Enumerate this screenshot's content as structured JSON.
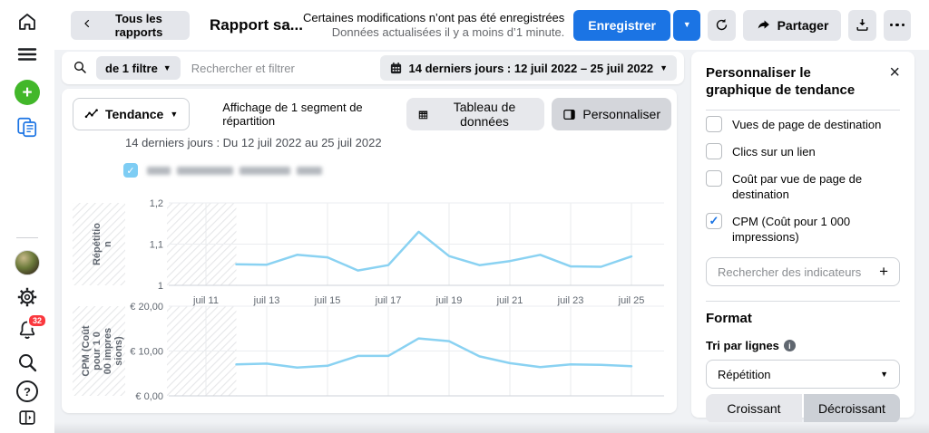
{
  "colors": {
    "accent_blue": "#1b74e4",
    "chart_line": "#8ad2f2",
    "badge_red": "#fa383e",
    "create_green": "#42b72a"
  },
  "sidebar": {
    "icons": [
      "home",
      "menu",
      "create",
      "reports",
      "avatar",
      "settings",
      "notifications",
      "search",
      "help",
      "collapse-panel"
    ],
    "notification_count": "32"
  },
  "topbar": {
    "back_label": "Tous les rapports",
    "title": "Rapport sa...",
    "warning_line1": "Certaines modifications n’ont pas été enregistrées",
    "warning_line2": "Données actualisées il y a moins d’1 minute.",
    "save_label": "Enregistrer",
    "share_label": "Partager"
  },
  "filterbar": {
    "filter_count_label": "de 1 filtre",
    "search_placeholder": "Rechercher et filtrer",
    "date_range_label": "14 derniers jours : 12 juil 2022 – 25 juil 2022"
  },
  "chart_toolbar": {
    "view_type_label": "Tendance",
    "segment_info": "Affichage de 1 segment de répartition",
    "data_table_label": "Tableau de données",
    "customize_label": "Personnaliser"
  },
  "chart_header": {
    "title": "14 derniers jours : Du 12 juil 2022 au 25 juil 2022",
    "legend_checked": true,
    "legend_label_redacted": true
  },
  "chart_data": [
    {
      "type": "line",
      "title": "14 derniers jours : Du 12 juil 2022 au 25 juil 2022",
      "metric": "Répétition",
      "ylabel": "Répétition",
      "ylabel_lines": [
        "Répétitio",
        "n"
      ],
      "ylim": [
        1,
        1.2
      ],
      "yticks": [
        {
          "value": 1,
          "label": "1"
        },
        {
          "value": 1.1,
          "label": "1,1"
        },
        {
          "value": 1.2,
          "label": "1,2"
        }
      ],
      "x_days": [
        12,
        13,
        14,
        15,
        16,
        17,
        18,
        19,
        20,
        21,
        22,
        23,
        24,
        25
      ],
      "values": [
        1.051,
        1.05,
        1.074,
        1.068,
        1.036,
        1.049,
        1.13,
        1.071,
        1.049,
        1.059,
        1.074,
        1.046,
        1.045,
        1.07
      ],
      "xticks": [
        {
          "day": 11,
          "label": "juil 11"
        },
        {
          "day": 13,
          "label": "juil 13"
        },
        {
          "day": 15,
          "label": "juil 15"
        },
        {
          "day": 17,
          "label": "juil 17"
        },
        {
          "day": 19,
          "label": "juil 19"
        },
        {
          "day": 21,
          "label": "juil 21"
        },
        {
          "day": 23,
          "label": "juil 23"
        },
        {
          "day": 25,
          "label": "juil 25"
        }
      ],
      "show_xtick_labels": true,
      "hatched_before_day": 12,
      "line_color": "#8ad2f2",
      "grid": true
    },
    {
      "type": "line",
      "metric": "CPM (Coût pour 1 000 impressions)",
      "ylabel": "CPM (Coût pour 1 000 impressions)",
      "ylabel_lines": [
        "CPM (Coût",
        "pour 1 0",
        "00 impres",
        "sions)"
      ],
      "ylim": [
        0,
        20
      ],
      "yticks": [
        {
          "value": 0,
          "label": "€ 0,00"
        },
        {
          "value": 10,
          "label": "€ 10,00"
        },
        {
          "value": 20,
          "label": "€ 20,00"
        }
      ],
      "x_days": [
        12,
        13,
        14,
        15,
        16,
        17,
        18,
        19,
        20,
        21,
        22,
        23,
        24,
        25
      ],
      "values": [
        7.0,
        7.2,
        6.3,
        6.7,
        8.9,
        8.9,
        12.8,
        12.2,
        8.8,
        7.3,
        6.4,
        7.0,
        6.9,
        6.6
      ],
      "xticks": [
        {
          "day": 11,
          "label": "juil 11"
        },
        {
          "day": 13,
          "label": "juil 13"
        },
        {
          "day": 15,
          "label": "juil 15"
        },
        {
          "day": 17,
          "label": "juil 17"
        },
        {
          "day": 19,
          "label": "juil 19"
        },
        {
          "day": 21,
          "label": "juil 21"
        },
        {
          "day": 23,
          "label": "juil 23"
        },
        {
          "day": 25,
          "label": "juil 25"
        }
      ],
      "show_xtick_labels": false,
      "hatched_before_day": 12,
      "line_color": "#8ad2f2",
      "grid": true
    }
  ],
  "panel": {
    "title": "Personnaliser le graphique de tendance",
    "metrics": [
      {
        "label": "Vues de page de destination",
        "checked": false
      },
      {
        "label": "Clics sur un lien",
        "checked": false
      },
      {
        "label": "Coût par vue de page de destination",
        "checked": false
      },
      {
        "label": "CPM (Coût pour 1 000 impressions)",
        "checked": true
      }
    ],
    "search_placeholder": "Rechercher des indicateurs",
    "format_heading": "Format",
    "sort_label": "Tri par lignes",
    "sort_value": "Répétition",
    "ascending_label": "Croissant",
    "descending_label": "Décroissant"
  }
}
